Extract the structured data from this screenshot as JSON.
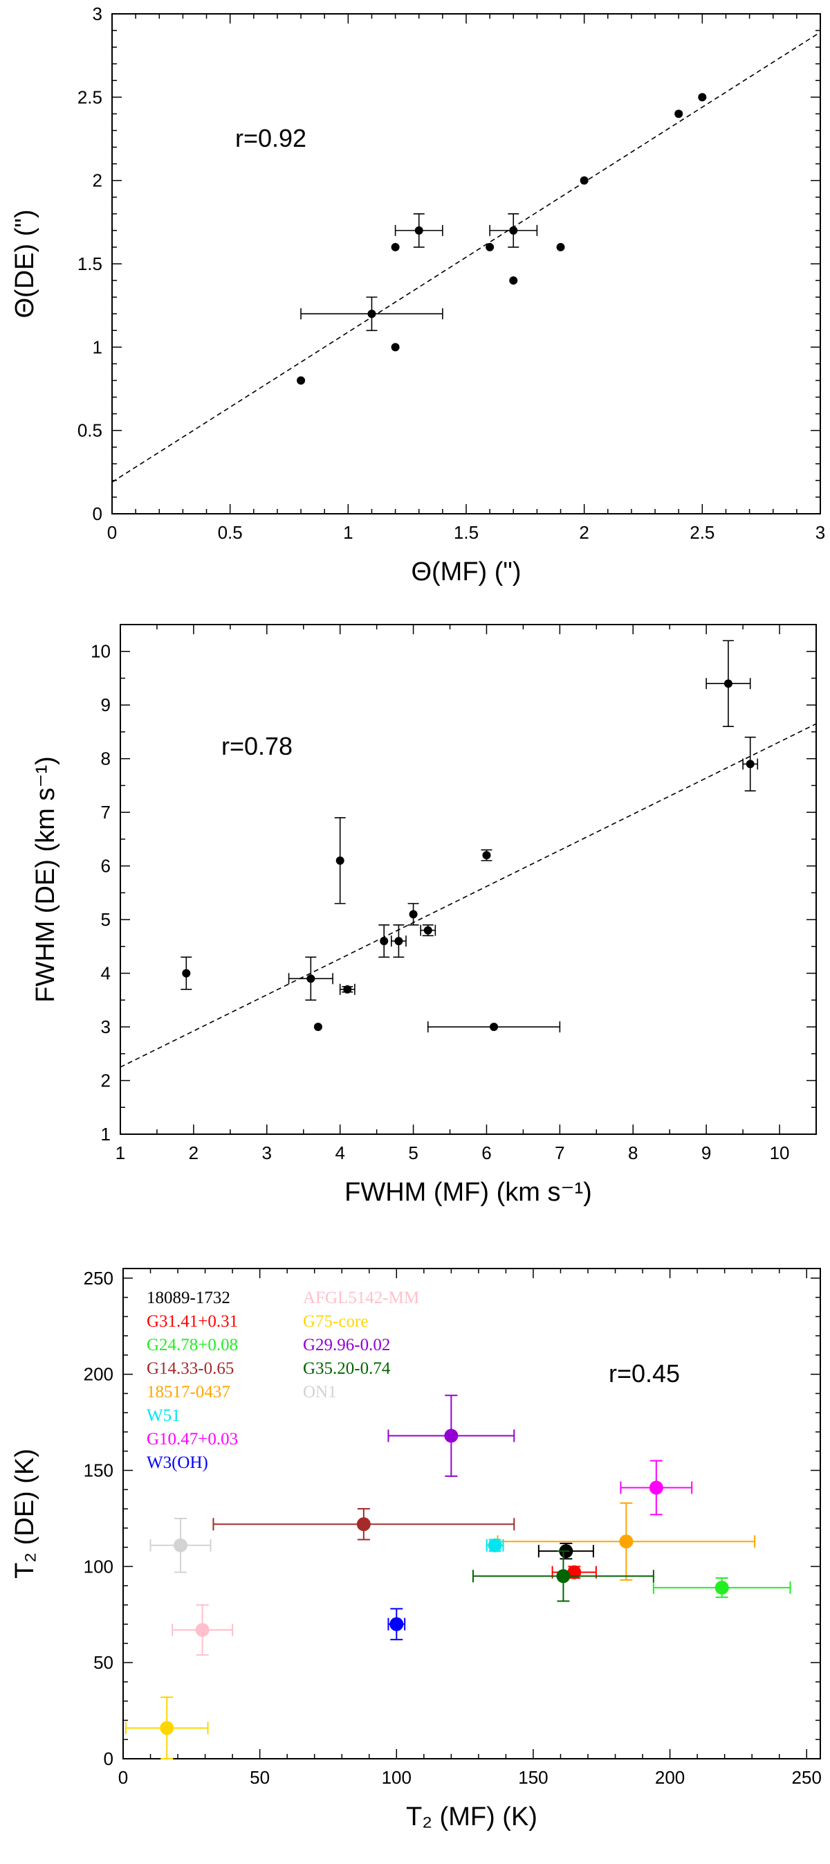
{
  "chart_data": [
    {
      "type": "scatter",
      "xlabel": "Θ(MF)  (\")",
      "ylabel": "Θ(DE)  (\")",
      "annotation": "r=0.92",
      "xlim": [
        0,
        3
      ],
      "ylim": [
        0,
        3
      ],
      "xticks": [
        "0",
        "0.5",
        "1",
        "1.5",
        "2",
        "2.5",
        "3"
      ],
      "yticks": [
        "0",
        "0.5",
        "1",
        "1.5",
        "2",
        "2.5",
        "3"
      ],
      "fit_line": [
        [
          0,
          0.19
        ],
        [
          3,
          2.89
        ]
      ],
      "points": [
        {
          "x": 0.8,
          "y": 0.8
        },
        {
          "x": 1.1,
          "y": 1.2,
          "xerr": 0.3,
          "yerr": 0.1
        },
        {
          "x": 1.2,
          "y": 1.0
        },
        {
          "x": 1.2,
          "y": 1.6
        },
        {
          "x": 1.3,
          "y": 1.7,
          "xerr": 0.1,
          "yerr": 0.1
        },
        {
          "x": 1.6,
          "y": 1.6
        },
        {
          "x": 1.7,
          "y": 1.7,
          "xerr": 0.1,
          "yerr": 0.1
        },
        {
          "x": 1.7,
          "y": 1.4
        },
        {
          "x": 1.9,
          "y": 1.6
        },
        {
          "x": 2.0,
          "y": 2.0
        },
        {
          "x": 2.4,
          "y": 2.4
        },
        {
          "x": 2.5,
          "y": 2.5
        }
      ]
    },
    {
      "type": "scatter",
      "xlabel": "FWHM (MF)  (km s⁻¹)",
      "ylabel": "FWHM (DE)  (km s⁻¹)",
      "annotation": "r=0.78",
      "xlim": [
        1,
        10.5
      ],
      "ylim": [
        1,
        10.5
      ],
      "xticks": [
        "1",
        "2",
        "3",
        "4",
        "5",
        "6",
        "7",
        "8",
        "9",
        "10"
      ],
      "yticks": [
        "1",
        "2",
        "3",
        "4",
        "5",
        "6",
        "7",
        "8",
        "9",
        "10"
      ],
      "fit_line": [
        [
          1,
          2.25
        ],
        [
          10.5,
          8.65
        ]
      ],
      "points": [
        {
          "x": 1.9,
          "y": 4.0,
          "yerr": 0.3
        },
        {
          "x": 3.6,
          "y": 3.9,
          "xerr": 0.3,
          "yerr": 0.4
        },
        {
          "x": 3.7,
          "y": 3.0
        },
        {
          "x": 4.0,
          "y": 6.1,
          "yerr": 0.8
        },
        {
          "x": 4.1,
          "y": 3.7,
          "xerr": 0.1,
          "yerr": 0.05
        },
        {
          "x": 4.6,
          "y": 4.6,
          "yerr": 0.3
        },
        {
          "x": 4.8,
          "y": 4.6,
          "xerr": 0.1,
          "yerr": 0.3
        },
        {
          "x": 5.0,
          "y": 5.1,
          "yerr": 0.2
        },
        {
          "x": 5.2,
          "y": 4.8,
          "xerr": 0.1,
          "yerr": 0.1
        },
        {
          "x": 6.0,
          "y": 6.2,
          "yerr": 0.1
        },
        {
          "x": 6.1,
          "y": 3.0,
          "xerr": 0.9
        },
        {
          "x": 9.3,
          "y": 9.4,
          "xerr": 0.3,
          "yerr": 0.8
        },
        {
          "x": 9.6,
          "y": 7.9,
          "xerr": 0.1,
          "yerr": 0.5
        }
      ]
    },
    {
      "type": "scatter",
      "xlabel": "T₂ (MF)  (K)",
      "ylabel": "T₂ (DE)  (K)",
      "annotation": "r=0.45",
      "xlim": [
        0,
        255
      ],
      "ylim": [
        0,
        255
      ],
      "xticks": [
        "0",
        "50",
        "100",
        "150",
        "200",
        "250"
      ],
      "yticks": [
        "0",
        "50",
        "100",
        "150",
        "200",
        "250"
      ],
      "series": [
        {
          "name": "18089-1732",
          "color": "#000000",
          "x": 162,
          "y": 108,
          "xerr": 10,
          "yerr": 4
        },
        {
          "name": "G31.41+0.31",
          "color": "#ff0000",
          "x": 165,
          "y": 97,
          "xerr": 8,
          "yerr": 3
        },
        {
          "name": "G24.78+0.08",
          "color": "#22ee22",
          "x": 219,
          "y": 89,
          "xerr": 25,
          "yerr": 5
        },
        {
          "name": "G14.33-0.65",
          "color": "#a52a2a",
          "x": 88,
          "y": 122,
          "xerr": 55,
          "yerr": 8
        },
        {
          "name": "18517-0437",
          "color": "#ffa500",
          "x": 184,
          "y": 113,
          "xerr": 47,
          "yerr": 20
        },
        {
          "name": "W51",
          "color": "#00e5ee",
          "x": 136,
          "y": 111,
          "xerr": 3,
          "yerr": 3
        },
        {
          "name": "G10.47+0.03",
          "color": "#ff00ff",
          "x": 195,
          "y": 141,
          "xerr": 13,
          "yerr": 14
        },
        {
          "name": "W3(OH)",
          "color": "#0000ff",
          "x": 100,
          "y": 70,
          "xerr": 3,
          "yerr": 8
        },
        {
          "name": "AFGL5142-MM",
          "color": "#ffc0cb",
          "x": 29,
          "y": 67,
          "xerr": 11,
          "yerr": 13
        },
        {
          "name": "G75-core",
          "color": "#ffd700",
          "x": 16,
          "y": 16,
          "xerr": 15,
          "yerr": 16
        },
        {
          "name": "G29.96-0.02",
          "color": "#9400d3",
          "x": 120,
          "y": 168,
          "xerr": 23,
          "yerr": 21
        },
        {
          "name": "G35.20-0.74",
          "color": "#006400",
          "x": 161,
          "y": 95,
          "xerr": 33,
          "yerr": 13
        },
        {
          "name": "ON1",
          "color": "#d3d3d3",
          "x": 21,
          "y": 111,
          "xerr": 11,
          "yerr": 14
        }
      ]
    }
  ]
}
